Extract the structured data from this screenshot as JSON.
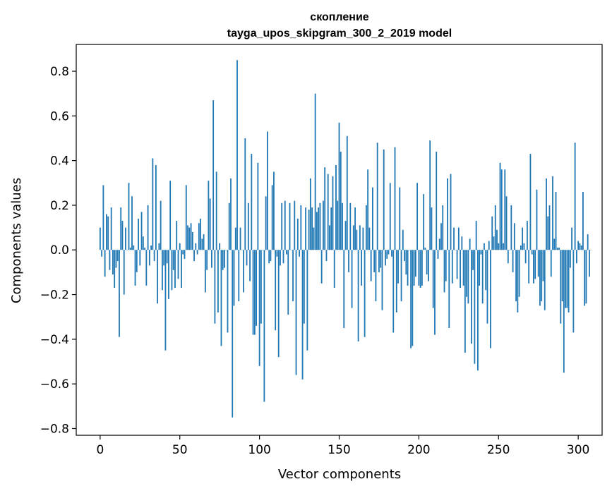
{
  "chart_data": {
    "type": "bar",
    "title_line1": "скопление",
    "title_line2": "tayga_upos_skipgram_300_2_2019 model",
    "xlabel": "Vector components",
    "ylabel": "Components values",
    "xlim": [
      -15,
      315
    ],
    "ylim": [
      -0.83,
      0.92
    ],
    "xticks": [
      0,
      50,
      100,
      150,
      200,
      250,
      300
    ],
    "xtick_labels": [
      "0",
      "50",
      "100",
      "150",
      "200",
      "250",
      "300"
    ],
    "yticks": [
      -0.8,
      -0.6,
      -0.4,
      -0.2,
      0.0,
      0.2,
      0.4,
      0.6,
      0.8
    ],
    "ytick_labels": [
      "−0.8",
      "−0.6",
      "−0.4",
      "−0.2",
      "0.0",
      "0.2",
      "0.4",
      "0.6",
      "0.8"
    ],
    "bar_color": "#1f77b4",
    "grid": false,
    "values": [
      0.1,
      -0.03,
      0.29,
      -0.12,
      0.16,
      0.15,
      -0.09,
      0.19,
      -0.11,
      -0.17,
      -0.08,
      -0.05,
      -0.39,
      0.19,
      0.13,
      -0.2,
      0.1,
      0.0,
      0.3,
      0.01,
      0.24,
      0.02,
      -0.16,
      -0.1,
      0.14,
      -0.07,
      0.17,
      0.06,
      0.01,
      -0.16,
      0.2,
      -0.07,
      0.02,
      0.41,
      -0.05,
      0.38,
      -0.24,
      0.03,
      0.22,
      -0.18,
      -0.07,
      -0.45,
      -0.06,
      -0.22,
      0.31,
      -0.18,
      -0.09,
      -0.17,
      0.13,
      -0.13,
      0.03,
      -0.17,
      -0.02,
      -0.04,
      0.29,
      0.11,
      0.1,
      0.12,
      0.08,
      -0.05,
      0.03,
      -0.02,
      0.12,
      0.14,
      0.05,
      0.07,
      -0.19,
      -0.09,
      0.31,
      0.23,
      -0.08,
      0.67,
      -0.33,
      0.35,
      -0.28,
      0.03,
      -0.43,
      -0.09,
      -0.08,
      0.0,
      -0.37,
      0.21,
      0.32,
      -0.75,
      -0.25,
      0.1,
      0.85,
      -0.23,
      0.1,
      0.0,
      -0.19,
      0.5,
      -0.07,
      0.21,
      -0.14,
      0.43,
      -0.38,
      -0.38,
      -0.34,
      0.39,
      -0.52,
      -0.33,
      0.0,
      -0.68,
      0.24,
      0.53,
      -0.06,
      -0.05,
      0.29,
      0.35,
      -0.36,
      -0.03,
      -0.48,
      -0.07,
      0.21,
      -0.06,
      0.22,
      -0.02,
      -0.29,
      0.21,
      0.0,
      -0.23,
      0.22,
      -0.56,
      0.14,
      -0.03,
      0.2,
      -0.58,
      -0.33,
      0.19,
      -0.45,
      0.18,
      0.32,
      0.19,
      0.1,
      0.7,
      0.17,
      0.19,
      0.21,
      -0.15,
      0.22,
      0.37,
      -0.05,
      0.34,
      0.11,
      0.19,
      0.33,
      -0.17,
      0.38,
      0.22,
      0.57,
      0.44,
      0.21,
      -0.35,
      0.13,
      0.51,
      -0.1,
      0.21,
      -0.26,
      0.11,
      0.19,
      0.09,
      -0.41,
      0.11,
      -0.16,
      0.1,
      -0.39,
      0.2,
      0.36,
      0.1,
      -0.14,
      0.28,
      -0.1,
      -0.23,
      0.48,
      -0.1,
      -0.08,
      -0.27,
      0.45,
      -0.07,
      -0.04,
      -0.02,
      0.3,
      -0.03,
      -0.37,
      0.46,
      -0.28,
      -0.15,
      0.28,
      -0.23,
      0.09,
      -0.05,
      -0.11,
      -0.16,
      0.0,
      -0.44,
      -0.43,
      -0.16,
      -0.12,
      0.3,
      -0.16,
      -0.17,
      -0.16,
      0.25,
      0.01,
      -0.11,
      -0.14,
      0.49,
      0.19,
      -0.26,
      -0.38,
      0.44,
      -0.04,
      0.05,
      0.12,
      0.2,
      -0.19,
      -0.14,
      0.32,
      -0.35,
      0.34,
      -0.15,
      0.1,
      0.0,
      -0.13,
      0.1,
      -0.17,
      0.06,
      -0.16,
      -0.46,
      -0.21,
      -0.24,
      0.05,
      -0.42,
      -0.09,
      -0.51,
      0.13,
      -0.54,
      -0.16,
      -0.02,
      -0.24,
      0.03,
      -0.18,
      -0.33,
      0.04,
      -0.44,
      0.15,
      0.06,
      0.2,
      0.09,
      0.03,
      0.39,
      0.36,
      0.03,
      0.36,
      0.24,
      -0.06,
      0.0,
      0.2,
      -0.1,
      0.12,
      -0.23,
      -0.28,
      -0.21,
      0.02,
      0.1,
      0.03,
      -0.06,
      0.13,
      -0.15,
      0.43,
      -0.02,
      -0.15,
      -0.13,
      0.27,
      -0.12,
      -0.25,
      -0.23,
      -0.14,
      -0.27,
      0.32,
      0.15,
      0.2,
      -0.12,
      0.33,
      0.05,
      0.26,
      0.01,
      0.01,
      -0.33,
      -0.23,
      -0.55,
      -0.26,
      -0.26,
      -0.28,
      -0.08,
      0.1,
      -0.37,
      0.48,
      -0.06,
      0.04,
      0.03,
      0.02,
      0.26,
      -0.25,
      -0.24,
      0.07,
      -0.12,
      0.0
    ]
  }
}
